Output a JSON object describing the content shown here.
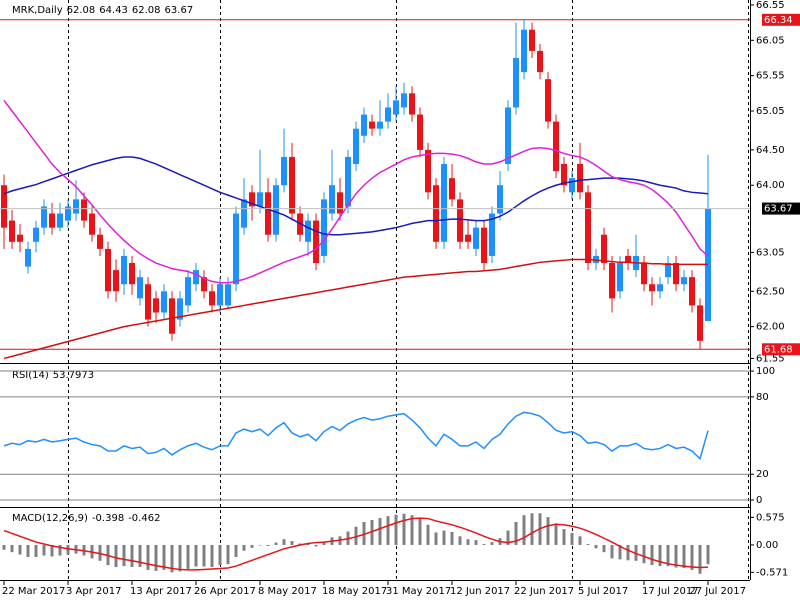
{
  "chart_data": [
    {
      "type": "candlestick",
      "title": "MRK,Daily",
      "categories": [
        "22 Mar 2017",
        null,
        null,
        null,
        null,
        null,
        null,
        null,
        "3 Apr 2017",
        null,
        null,
        null,
        null,
        null,
        null,
        null,
        "13 Apr 2017",
        null,
        null,
        null,
        null,
        null,
        null,
        null,
        "26 Apr 2017",
        null,
        null,
        null,
        null,
        null,
        null,
        null,
        "8 May 2017",
        null,
        null,
        null,
        null,
        null,
        null,
        null,
        "18 May 2017",
        null,
        null,
        null,
        null,
        null,
        null,
        null,
        "31 May 2017",
        null,
        null,
        null,
        null,
        null,
        null,
        null,
        "12 Jun 2017",
        null,
        null,
        null,
        null,
        null,
        null,
        null,
        "22 Jun 2017",
        null,
        null,
        null,
        null,
        null,
        null,
        null,
        "5 Jul 2017",
        null,
        null,
        null,
        null,
        null,
        null,
        null,
        "17 Jul 2017",
        null,
        null,
        null,
        null,
        null,
        null,
        null,
        "27 Jul 2017"
      ],
      "open": [
        64.0,
        63.5,
        63.3,
        62.85,
        63.2,
        63.4,
        63.6,
        63.4,
        63.5,
        63.6,
        63.8,
        63.6,
        63.3,
        63.1,
        62.8,
        62.6,
        62.9,
        62.4,
        62.6,
        62.4,
        62.2,
        62.4,
        62.1,
        62.3,
        62.6,
        62.7,
        62.5,
        62.3,
        62.3,
        62.6,
        63.4,
        63.9,
        63.7,
        63.9,
        63.3,
        64.0,
        64.4,
        63.6,
        63.2,
        63.5,
        63.0,
        63.6,
        63.9,
        63.7,
        64.3,
        64.7,
        64.9,
        64.8,
        64.9,
        65.0,
        65.1,
        65.3,
        65.0,
        64.5,
        64.0,
        63.2,
        64.1,
        63.8,
        63.3,
        63.1,
        63.4,
        63.0,
        63.6,
        64.3,
        65.1,
        65.6,
        66.2,
        65.9,
        65.5,
        64.9,
        64.3,
        63.9,
        64.3,
        63.9,
        62.9,
        63.3,
        62.9,
        62.5,
        63.0,
        62.8,
        62.9,
        62.6,
        62.5,
        62.7,
        62.9,
        62.6,
        62.7,
        62.3,
        62.08
      ],
      "high": [
        64.15,
        63.65,
        63.45,
        63.2,
        63.5,
        63.8,
        63.75,
        63.75,
        63.8,
        64.07,
        63.9,
        63.7,
        63.4,
        63.2,
        62.95,
        63.1,
        63.0,
        62.8,
        62.7,
        62.5,
        62.6,
        62.5,
        62.5,
        62.8,
        62.9,
        62.8,
        62.6,
        62.7,
        62.7,
        63.7,
        64.1,
        64.0,
        64.5,
        64.1,
        64.1,
        64.8,
        64.6,
        63.7,
        63.6,
        63.6,
        63.9,
        64.5,
        64.1,
        64.5,
        64.9,
        65.1,
        65.0,
        65.2,
        65.3,
        65.4,
        65.45,
        65.4,
        65.1,
        64.6,
        64.1,
        64.4,
        64.3,
        63.9,
        63.5,
        63.5,
        63.5,
        63.7,
        64.2,
        65.2,
        66.3,
        66.34,
        66.3,
        66.0,
        65.6,
        65.0,
        64.4,
        64.2,
        64.6,
        64.0,
        63.1,
        63.4,
        63.0,
        63.0,
        63.1,
        63.3,
        63.0,
        62.7,
        62.7,
        63.0,
        63.0,
        62.8,
        62.8,
        62.4,
        64.43
      ],
      "low": [
        63.1,
        63.1,
        63.05,
        62.75,
        63.05,
        63.3,
        63.3,
        63.35,
        63.4,
        63.5,
        63.4,
        63.2,
        63.0,
        62.4,
        62.35,
        62.45,
        62.45,
        62.3,
        62.0,
        62.05,
        62.1,
        61.8,
        62.0,
        62.2,
        62.5,
        62.4,
        62.2,
        62.2,
        62.25,
        62.5,
        63.3,
        63.5,
        63.6,
        63.2,
        63.2,
        63.9,
        63.5,
        63.2,
        63.0,
        62.8,
        62.9,
        63.5,
        63.5,
        63.6,
        64.2,
        64.6,
        64.7,
        64.7,
        64.8,
        64.9,
        65.0,
        64.9,
        64.4,
        63.8,
        63.1,
        63.1,
        63.7,
        63.1,
        63.1,
        63.0,
        62.8,
        62.9,
        63.5,
        64.2,
        65.0,
        65.5,
        65.8,
        65.5,
        64.8,
        64.1,
        63.9,
        63.8,
        63.8,
        62.8,
        62.8,
        62.8,
        62.2,
        62.4,
        62.8,
        62.7,
        62.5,
        62.3,
        62.4,
        62.6,
        62.5,
        62.5,
        62.2,
        61.68,
        62.08
      ],
      "close": [
        63.4,
        63.2,
        63.2,
        63.1,
        63.4,
        63.7,
        63.4,
        63.6,
        63.7,
        63.8,
        63.5,
        63.3,
        63.1,
        62.5,
        62.5,
        63.0,
        62.6,
        62.7,
        62.1,
        62.2,
        62.5,
        61.9,
        62.4,
        62.7,
        62.8,
        62.5,
        62.3,
        62.6,
        62.6,
        63.6,
        63.8,
        63.7,
        63.9,
        63.3,
        64.0,
        64.4,
        63.6,
        63.3,
        63.5,
        62.9,
        63.8,
        64.0,
        63.6,
        64.4,
        64.8,
        65.0,
        64.8,
        64.9,
        65.1,
        65.2,
        65.3,
        65.0,
        64.5,
        63.9,
        63.2,
        64.3,
        63.8,
        63.2,
        63.2,
        63.4,
        62.9,
        63.6,
        64.0,
        65.1,
        65.8,
        66.2,
        65.9,
        65.6,
        64.9,
        64.2,
        64.0,
        64.1,
        63.9,
        62.9,
        63.0,
        62.9,
        62.4,
        62.9,
        62.9,
        63.0,
        62.6,
        62.5,
        62.6,
        62.9,
        62.6,
        62.7,
        62.3,
        61.8,
        63.67
      ],
      "up_color": "#1e90ff",
      "down_color": "#e8141a",
      "series": [
        {
          "color": "#1a1ab8",
          "values": [
            63.88,
            63.92,
            63.95,
            63.98,
            64.01,
            64.05,
            64.09,
            64.13,
            64.17,
            64.21,
            64.25,
            64.29,
            64.32,
            64.35,
            64.38,
            64.4,
            64.4,
            64.38,
            64.34,
            64.3,
            64.25,
            64.2,
            64.15,
            64.1,
            64.05,
            64.0,
            63.95,
            63.9,
            63.86,
            63.82,
            63.78,
            63.74,
            63.7,
            63.66,
            63.62,
            63.58,
            63.52,
            63.46,
            63.4,
            63.35,
            63.31,
            63.3,
            63.3,
            63.31,
            63.32,
            63.33,
            63.34,
            63.36,
            63.38,
            63.4,
            63.43,
            63.46,
            63.48,
            63.5,
            63.5,
            63.51,
            63.52,
            63.52,
            63.51,
            63.5,
            63.5,
            63.52,
            63.56,
            63.62,
            63.7,
            63.78,
            63.85,
            63.91,
            63.96,
            64.0,
            64.03,
            64.05,
            64.07,
            64.08,
            64.09,
            64.1,
            64.1,
            64.1,
            64.09,
            64.08,
            64.06,
            64.03,
            64.0,
            63.98,
            63.96,
            63.92,
            63.9,
            63.89,
            63.88
          ]
        },
        {
          "color": "#e020d8",
          "values": [
            65.2,
            65.05,
            64.9,
            64.75,
            64.6,
            64.45,
            64.3,
            64.18,
            64.08,
            63.98,
            63.85,
            63.72,
            63.58,
            63.45,
            63.33,
            63.22,
            63.12,
            63.03,
            62.96,
            62.9,
            62.86,
            62.82,
            62.8,
            62.78,
            62.74,
            62.68,
            62.64,
            62.62,
            62.62,
            62.64,
            62.67,
            62.71,
            62.76,
            62.81,
            62.86,
            62.91,
            62.95,
            62.99,
            63.03,
            63.1,
            63.22,
            63.38,
            63.55,
            63.72,
            63.88,
            64.0,
            64.1,
            64.18,
            64.24,
            64.3,
            64.36,
            64.4,
            64.42,
            64.44,
            64.45,
            64.45,
            64.44,
            64.42,
            64.38,
            64.33,
            64.3,
            64.3,
            64.33,
            64.38,
            64.43,
            64.48,
            64.52,
            64.53,
            64.52,
            64.49,
            64.45,
            64.42,
            64.4,
            64.35,
            64.28,
            64.2,
            64.12,
            64.08,
            64.05,
            64.03,
            64.0,
            63.94,
            63.85,
            63.75,
            63.62,
            63.45,
            63.28,
            63.1,
            63.0
          ]
        },
        {
          "color": "#d01010",
          "values": [
            61.55,
            61.58,
            61.61,
            61.64,
            61.67,
            61.7,
            61.73,
            61.76,
            61.79,
            61.82,
            61.85,
            61.88,
            61.91,
            61.94,
            61.97,
            62.0,
            62.02,
            62.04,
            62.06,
            62.08,
            62.1,
            62.12,
            62.14,
            62.16,
            62.18,
            62.2,
            62.22,
            62.24,
            62.26,
            62.28,
            62.3,
            62.32,
            62.34,
            62.36,
            62.38,
            62.4,
            62.42,
            62.44,
            62.46,
            62.48,
            62.5,
            62.52,
            62.54,
            62.56,
            62.58,
            62.6,
            62.62,
            62.64,
            62.66,
            62.68,
            62.7,
            62.71,
            62.72,
            62.73,
            62.74,
            62.75,
            62.76,
            62.77,
            62.78,
            62.78,
            62.79,
            62.8,
            62.81,
            62.83,
            62.85,
            62.87,
            62.89,
            62.91,
            62.92,
            62.93,
            62.94,
            62.95,
            62.95,
            62.95,
            62.94,
            62.93,
            62.92,
            62.91,
            62.91,
            62.9,
            62.9,
            62.89,
            62.89,
            62.88,
            62.88,
            62.88,
            62.88,
            62.88,
            62.88
          ]
        }
      ],
      "hlines": [
        {
          "value": 66.34,
          "color": "#e8141a"
        },
        {
          "value": 61.68,
          "color": "#e8141a"
        }
      ],
      "ylim": [
        61.5,
        66.62
      ],
      "yticks": [
        66.55,
        66.05,
        65.55,
        65.05,
        {
          "value": 64.5,
          "label": "64.50"
        },
        {
          "value": 64,
          "label": "64.00"
        },
        63.05,
        {
          "value": 62.5,
          "label": "62.50"
        },
        {
          "value": 62,
          "label": "62.00"
        },
        61.55
      ]
    },
    {
      "type": "line",
      "title": "RSI(14)",
      "series": [
        {
          "color": "#1e90ff",
          "values": [
            42,
            44,
            43,
            46,
            45,
            47,
            45,
            46,
            47,
            48,
            45,
            43,
            42,
            38,
            38,
            42,
            40,
            41,
            36,
            37,
            40,
            35,
            39,
            42,
            44,
            41,
            39,
            42,
            42,
            52,
            55,
            53,
            55,
            50,
            56,
            60,
            52,
            49,
            51,
            46,
            53,
            57,
            54,
            59,
            62,
            64,
            62,
            63,
            65,
            66,
            67,
            62,
            56,
            48,
            42,
            51,
            47,
            42,
            42,
            45,
            40,
            47,
            51,
            59,
            65,
            68,
            67,
            65,
            60,
            54,
            52,
            53,
            50,
            44,
            45,
            43,
            38,
            42,
            42,
            44,
            40,
            39,
            40,
            43,
            40,
            41,
            38,
            32,
            53.7973
          ]
        }
      ],
      "ylim": [
        -5.4,
        104.7
      ],
      "yticks": [
        100,
        80,
        20,
        0
      ]
    },
    {
      "type": "macd",
      "title": "MACD(12,26,9)",
      "histogram": {
        "color": "#808080",
        "values": [
          -0.1,
          -0.15,
          -0.2,
          -0.25,
          -0.25,
          -0.22,
          -0.24,
          -0.22,
          -0.2,
          -0.18,
          -0.22,
          -0.28,
          -0.33,
          -0.42,
          -0.46,
          -0.44,
          -0.46,
          -0.46,
          -0.52,
          -0.54,
          -0.52,
          -0.57,
          -0.55,
          -0.5,
          -0.45,
          -0.45,
          -0.46,
          -0.42,
          -0.4,
          -0.25,
          -0.12,
          -0.06,
          0.0,
          -0.02,
          0.05,
          0.12,
          0.08,
          0.03,
          0.03,
          -0.03,
          0.06,
          0.16,
          0.18,
          0.28,
          0.38,
          0.48,
          0.52,
          0.56,
          0.6,
          0.63,
          0.65,
          0.62,
          0.55,
          0.42,
          0.26,
          0.3,
          0.27,
          0.18,
          0.12,
          0.1,
          0.02,
          0.06,
          0.14,
          0.3,
          0.48,
          0.62,
          0.66,
          0.66,
          0.58,
          0.45,
          0.33,
          0.25,
          0.18,
          0.02,
          -0.07,
          -0.15,
          -0.28,
          -0.3,
          -0.32,
          -0.33,
          -0.38,
          -0.42,
          -0.44,
          -0.44,
          -0.47,
          -0.48,
          -0.52,
          -0.6,
          -0.398
        ]
      },
      "signal": {
        "color": "#e8141a",
        "values": [
          0.3,
          0.24,
          0.18,
          0.12,
          0.06,
          0.02,
          -0.02,
          -0.05,
          -0.08,
          -0.1,
          -0.12,
          -0.15,
          -0.18,
          -0.22,
          -0.27,
          -0.3,
          -0.33,
          -0.36,
          -0.4,
          -0.43,
          -0.46,
          -0.49,
          -0.51,
          -0.52,
          -0.52,
          -0.51,
          -0.5,
          -0.49,
          -0.48,
          -0.44,
          -0.38,
          -0.32,
          -0.26,
          -0.2,
          -0.14,
          -0.08,
          -0.04,
          0.0,
          0.03,
          0.05,
          0.06,
          0.08,
          0.1,
          0.13,
          0.17,
          0.22,
          0.28,
          0.34,
          0.4,
          0.46,
          0.51,
          0.55,
          0.56,
          0.55,
          0.5,
          0.46,
          0.42,
          0.37,
          0.31,
          0.25,
          0.18,
          0.12,
          0.07,
          0.05,
          0.08,
          0.15,
          0.25,
          0.34,
          0.4,
          0.43,
          0.42,
          0.39,
          0.35,
          0.29,
          0.22,
          0.14,
          0.06,
          -0.03,
          -0.11,
          -0.18,
          -0.24,
          -0.3,
          -0.35,
          -0.39,
          -0.42,
          -0.44,
          -0.46,
          -0.47,
          -0.462
        ]
      },
      "ylim": [
        -0.73,
        0.77
      ],
      "yticks": [
        0.575,
        {
          "value": 0,
          "label": "0.00"
        },
        -0.571
      ]
    }
  ]
}
